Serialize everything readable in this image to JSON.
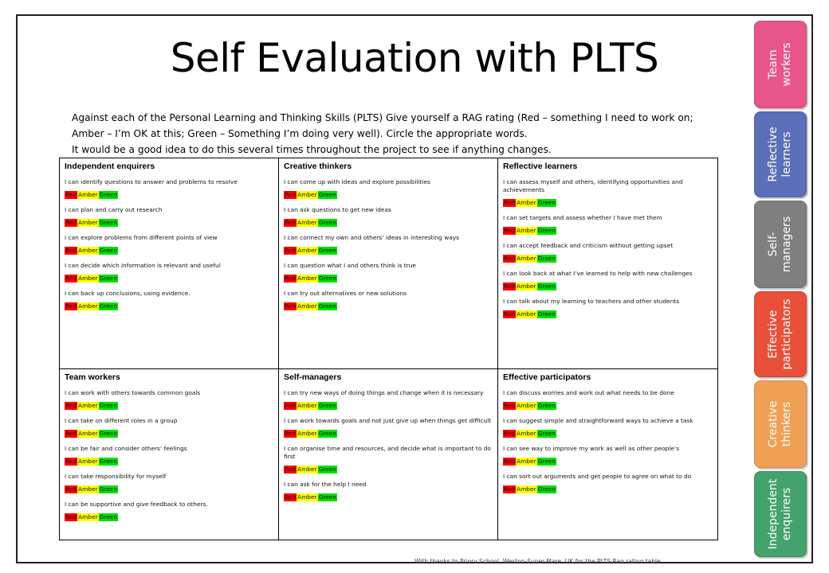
{
  "title": "Self Evaluation with PLTS",
  "intro": {
    "para1": "Against each of the Personal Learning and Thinking Skills (PLTS) Give yourself a RAG rating (Red – something I need to work on; Amber – I’m OK at this; Green – Something I’m doing very well). Circle the appropriate words.",
    "para2": "It would be a good idea to do this several times throughout the project to see if anything changes."
  },
  "rag": {
    "red": "Red",
    "amber": "Amber",
    "green": "Green"
  },
  "colors": {
    "red": "#ff0000",
    "amber": "#ffff00",
    "green": "#00e000"
  },
  "grid": {
    "independent_enquirers": {
      "title": "Independent enquirers",
      "items": [
        "I can identify questions to answer and problems to resolve",
        "I can plan and carry out research",
        "I can explore problems from different points of view",
        "I can decide which information is relevant and useful",
        "I can back up conclusions, using evidence."
      ]
    },
    "creative_thinkers": {
      "title": "Creative thinkers",
      "items": [
        "I can come up with ideas and explore possibilities",
        "I can ask questions to get new ideas",
        "I can connect my own and others’ ideas in interesting ways",
        "I can question what I and others think is true",
        "I can try out alternatives or new solutions"
      ]
    },
    "reflective_learners": {
      "title": "Reflective learners",
      "items": [
        " I can assess myself and others, identifying opportunities and achievements",
        "I can set targets and assess whether I have met them",
        "I can accept feedback and criticism without getting upset",
        " I can look back at what I’ve learned to help with new challenges",
        "I can talk about my learning to teachers and other students"
      ]
    },
    "team_workers": {
      "title": "Team workers",
      "items": [
        "I can work with others towards common goals",
        "I can take on different roles in a group",
        "I can be fair and consider others’ feelings",
        "I can take responsibility for myself",
        "I can be supportive and give feedback to others."
      ]
    },
    "self_managers": {
      "title": "Self-managers",
      "items": [
        "I can try new ways of doing things and change when it is necessary",
        "I can work towards goals and not just give up when things get difficult",
        "I can organise time and resources, and decide what is important to do first",
        "I can ask for the help I need"
      ]
    },
    "effective_participators": {
      "title": "Effective participators",
      "items": [
        " I can discuss worries and work out what needs to be done",
        "I can suggest simple and straightforward ways to achieve a task",
        "I can see way to improve my work as well as other people’s",
        "I can sort out arguments and get people to agree on what to do"
      ]
    }
  },
  "tabs": [
    {
      "label": "Team\nworkers",
      "color": "#e8558a"
    },
    {
      "label": "Reflective\nlearners",
      "color": "#5b6fb8"
    },
    {
      "label": "Self-\nmanagers",
      "color": "#7f7f7f"
    },
    {
      "label": "Effective\nparticipators",
      "color": "#e8503a"
    },
    {
      "label": "Creative\nthinkers",
      "color": "#f0a055"
    },
    {
      "label": "Independent\nenquirers",
      "color": "#44a36c"
    }
  ],
  "footer": "With thanks to Priory School, Weston-Super-Mare, UK for the PLTS Rag rating table"
}
